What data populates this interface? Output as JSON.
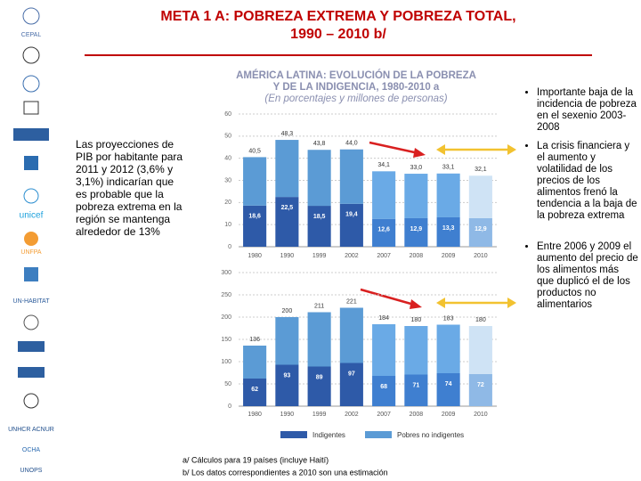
{
  "slide_title": [
    "META 1 A: POBREZA EXTREMA Y POBREZA TOTAL,",
    "1990 – 2010 b/"
  ],
  "logos": [
    "CEPAL",
    "unicef",
    "UNFPA",
    "UN-HABITAT",
    "UNHCR ACNUR",
    "OCHA",
    "UNOPS"
  ],
  "left_text": "Las proyecciones de PIB por habitante para 2011 y 2012 (3,6% y 3,1%) indicarían que es probable que la pobreza extrema en la región se mantenga alrededor de 13%",
  "right_bullets": [
    "Importante baja de la incidencia de pobreza en el sexenio 2003-2008",
    "La crisis financiera y el aumento y volatilidad de los precios de los alimentos frenó la tendencia a la baja de la pobreza extrema",
    "Entre 2006 y 2009 el aumento del precio de los alimentos más que duplicó el de los productos no alimentarios"
  ],
  "figure": {
    "title": [
      "AMÉRICA LATINA: EVOLUCIÓN DE LA POBREZA",
      "Y DE LA INDIGENCIA, 1980-2010 a"
    ],
    "subtitle": "(En porcentajes y millones de personas)"
  },
  "footnotes": [
    "a/  Cálculos para 19 países (incluye Haití)",
    "b/  Los datos correspondientes a 2010 son una estimación"
  ],
  "chart_data": [
    {
      "type": "bar",
      "stacked": true,
      "categories": [
        "1980",
        "1990",
        "1999",
        "2002",
        "2007",
        "2008",
        "2009",
        "2010"
      ],
      "series": [
        {
          "color": "#2e5aa8",
          "colors": [
            "#2e5aa8",
            "#2e5aa8",
            "#2e5aa8",
            "#2e5aa8",
            "#3f7fd0",
            "#3f7fd0",
            "#3f7fd0",
            "#8fb9e6"
          ],
          "values": [
            18.6,
            22.5,
            18.5,
            19.4,
            12.6,
            12.9,
            13.3,
            12.9
          ],
          "value_labels": [
            "18,6",
            "22,5",
            "18,5",
            "19,4",
            "12,6",
            "12,9",
            "13,3",
            "12,9"
          ]
        },
        {
          "color": "#5b9bd5",
          "colors": [
            "#5b9bd5",
            "#5b9bd5",
            "#5b9bd5",
            "#5b9bd5",
            "#6aaae6",
            "#6aaae6",
            "#6aaae6",
            "#cfe3f5"
          ],
          "values": [
            21.9,
            25.8,
            25.3,
            24.6,
            21.5,
            20.1,
            19.8,
            19.2
          ]
        }
      ],
      "totals": [
        40.5,
        48.3,
        43.8,
        44.0,
        34.1,
        33.0,
        33.1,
        32.1
      ],
      "total_labels": [
        "40,5",
        "48,3",
        "43,8",
        "44,0",
        "34,1",
        "33,0",
        "33,1",
        "32,1"
      ],
      "ylim": [
        0,
        60
      ],
      "yticks": [
        0,
        10,
        20,
        30,
        40,
        50,
        60
      ],
      "grid": true
    },
    {
      "type": "bar",
      "stacked": true,
      "categories": [
        "1980",
        "1990",
        "1999",
        "2002",
        "2007",
        "2008",
        "2009",
        "2010"
      ],
      "series": [
        {
          "name": "Indigentes",
          "color": "#2e5aa8",
          "colors": [
            "#2e5aa8",
            "#2e5aa8",
            "#2e5aa8",
            "#2e5aa8",
            "#3f7fd0",
            "#3f7fd0",
            "#3f7fd0",
            "#8fb9e6"
          ],
          "values": [
            62,
            93,
            89,
            97,
            68,
            71,
            74,
            72
          ]
        },
        {
          "name": "Pobres no indigentes",
          "color": "#5b9bd5",
          "colors": [
            "#5b9bd5",
            "#5b9bd5",
            "#5b9bd5",
            "#5b9bd5",
            "#6aaae6",
            "#6aaae6",
            "#6aaae6",
            "#cfe3f5"
          ],
          "values": [
            74,
            107,
            122,
            124,
            116,
            109,
            109,
            108
          ]
        }
      ],
      "totals": [
        136,
        200,
        211,
        221,
        184,
        180,
        183,
        180
      ],
      "ylim": [
        0,
        300
      ],
      "yticks": [
        0,
        50,
        100,
        150,
        200,
        250,
        300
      ],
      "grid": true
    }
  ]
}
